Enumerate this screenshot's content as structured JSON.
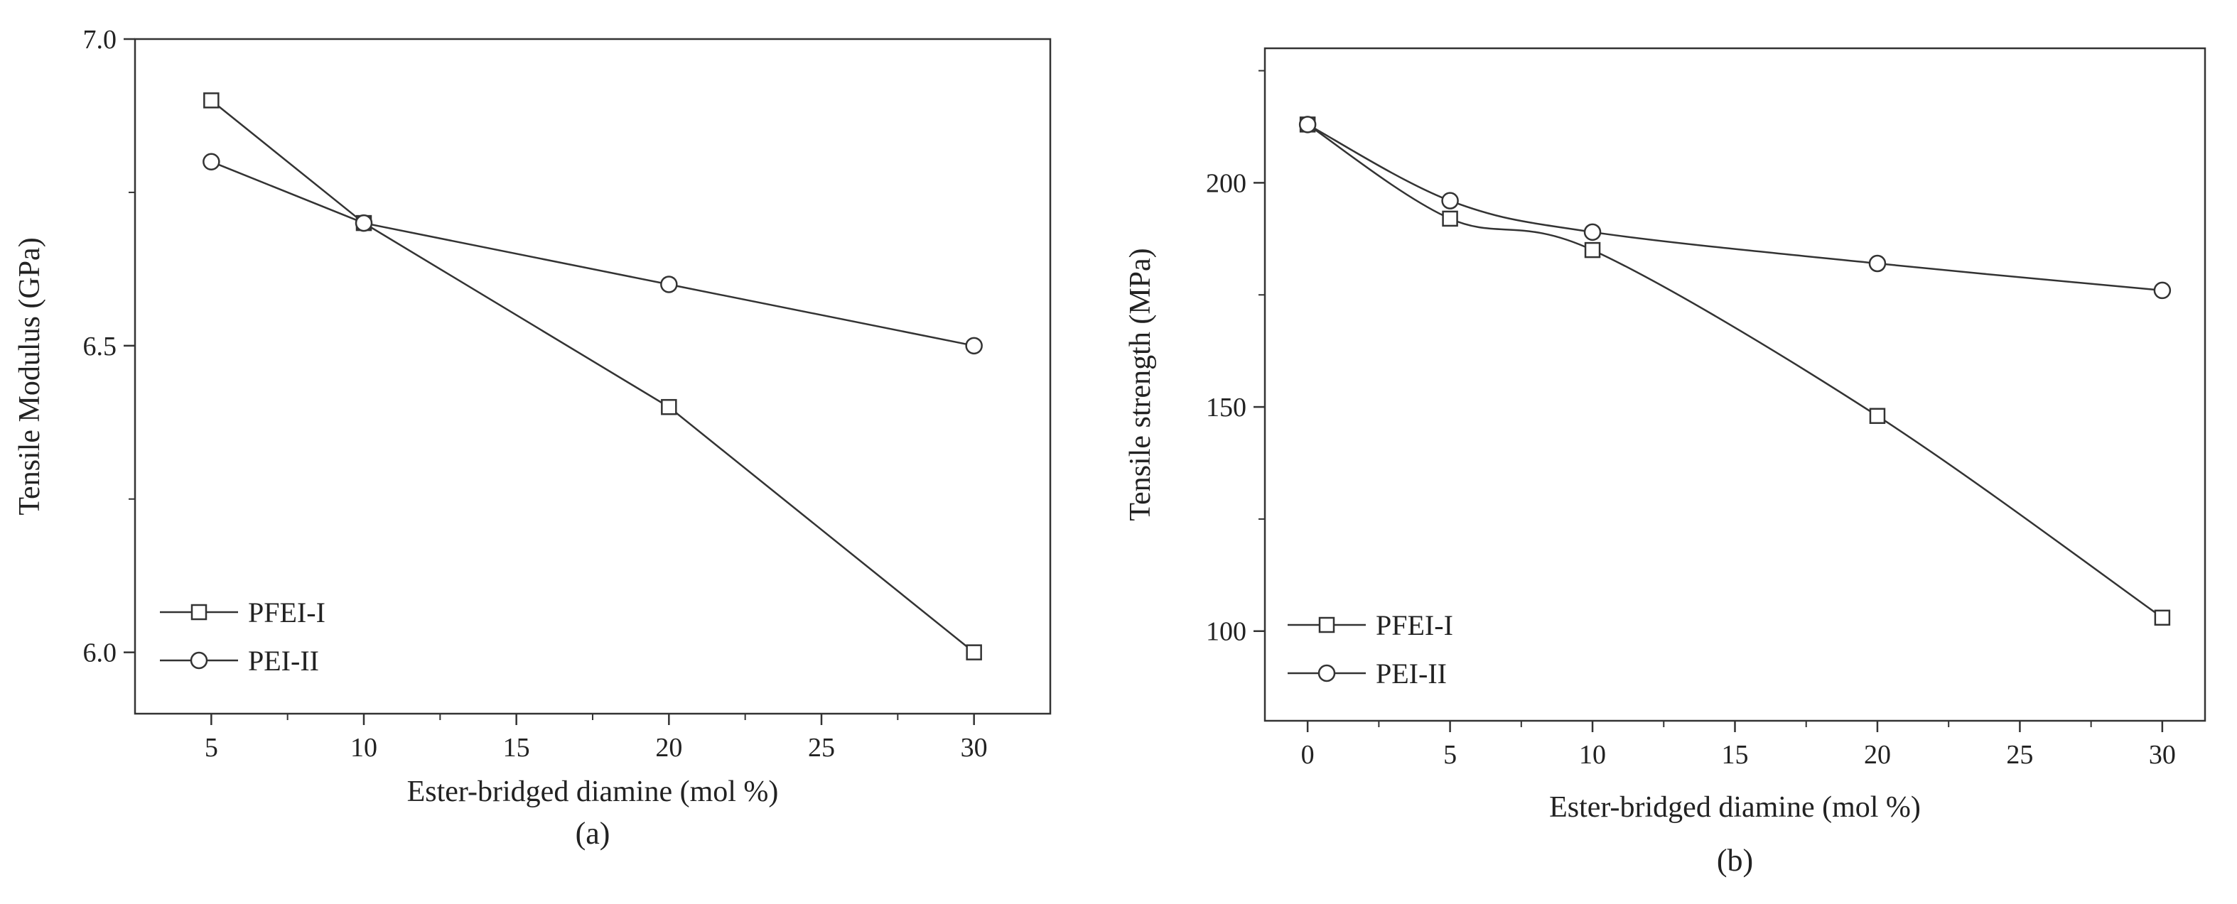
{
  "chart_data": [
    {
      "panel": "a",
      "type": "line",
      "caption": "(a)",
      "xlabel": "Ester-bridged diamine (mol %)",
      "ylabel": "Tensile Modulus (GPa)",
      "xlim": [
        2.5,
        32.5
      ],
      "ylim": [
        5.9,
        7.0
      ],
      "xticks": [
        5,
        10,
        15,
        20,
        25,
        30
      ],
      "xtick_labels": [
        "5",
        "10",
        "15",
        "20",
        "25",
        "30"
      ],
      "yticks": [
        6.0,
        6.5,
        7.0
      ],
      "ytick_labels": [
        "6.0",
        "6.5",
        "7.0"
      ],
      "legend_position": "bottom-left",
      "series": [
        {
          "name": "PFEI-I",
          "marker": "square",
          "x": [
            5,
            10,
            20,
            30
          ],
          "y": [
            6.9,
            6.7,
            6.4,
            6.0
          ]
        },
        {
          "name": "PEI-II",
          "marker": "circle",
          "x": [
            5,
            10,
            20,
            30
          ],
          "y": [
            6.8,
            6.7,
            6.6,
            6.5
          ]
        }
      ]
    },
    {
      "panel": "b",
      "type": "line",
      "caption": "(b)",
      "xlabel": "Ester-bridged diamine (mol %)",
      "ylabel": "Tensile strength (MPa)",
      "xlim": [
        -1.5,
        31.5
      ],
      "ylim": [
        80,
        230
      ],
      "xticks": [
        0,
        5,
        10,
        15,
        20,
        25,
        30
      ],
      "xtick_labels": [
        "0",
        "5",
        "10",
        "15",
        "20",
        "25",
        "30"
      ],
      "yticks": [
        100,
        150,
        200
      ],
      "ytick_labels": [
        "100",
        "150",
        "200"
      ],
      "legend_position": "bottom-left",
      "series": [
        {
          "name": "PFEI-I",
          "marker": "square",
          "x": [
            0,
            5,
            10,
            20,
            30
          ],
          "y": [
            213,
            192,
            185,
            148,
            103
          ]
        },
        {
          "name": "PEI-II",
          "marker": "circle",
          "x": [
            0,
            5,
            10,
            20,
            30
          ],
          "y": [
            213,
            196,
            189,
            182,
            176
          ]
        }
      ]
    }
  ]
}
